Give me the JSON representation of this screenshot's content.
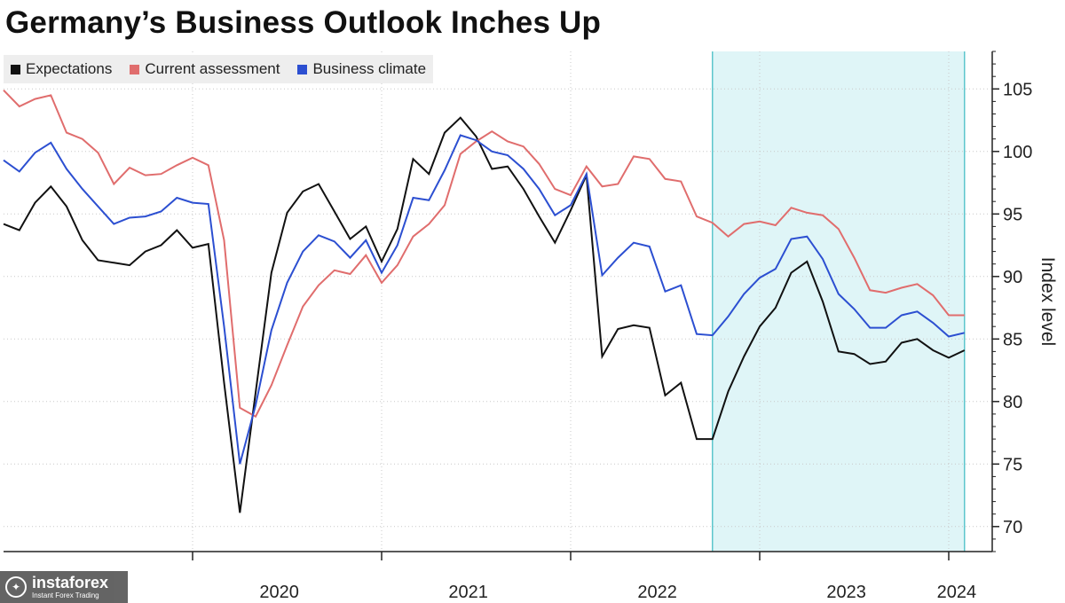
{
  "chart_data": {
    "type": "line",
    "title": "Germany’s Business Outlook Inches Up",
    "ylabel": "Index level",
    "ylim": [
      68,
      108
    ],
    "yticks": [
      70,
      75,
      80,
      85,
      90,
      95,
      100,
      105
    ],
    "xticks": [
      "2020",
      "2021",
      "2022",
      "2023",
      "2024"
    ],
    "x_start": "2019-01",
    "highlight": {
      "from": "2022-10",
      "to": "2024-02",
      "color": "#dff5f7"
    },
    "grid": true,
    "legend_position": "top-left",
    "series": [
      {
        "name": "Expectations",
        "color": "#111111",
        "values": [
          94.2,
          93.7,
          95.9,
          97.2,
          95.6,
          92.9,
          91.3,
          91.1,
          90.9,
          92.0,
          92.5,
          93.7,
          92.3,
          92.6,
          81.5,
          71.1,
          80.7,
          90.3,
          95.1,
          96.8,
          97.4,
          95.2,
          93.0,
          94.0,
          91.2,
          93.8,
          99.4,
          98.2,
          101.5,
          102.7,
          101.2,
          98.6,
          98.8,
          97.0,
          94.8,
          92.7,
          95.3,
          98.1,
          83.6,
          85.8,
          86.1,
          85.9,
          80.5,
          81.5,
          77.0,
          77.0,
          80.8,
          83.6,
          86.0,
          87.5,
          90.3,
          91.2,
          88.0,
          84.0,
          83.8,
          83.0,
          83.2,
          84.7,
          85.0,
          84.1,
          83.5,
          84.1
        ]
      },
      {
        "name": "Current assessment",
        "color": "#e06d6d",
        "values": [
          104.9,
          103.6,
          104.2,
          104.5,
          101.5,
          101.0,
          99.9,
          97.4,
          98.7,
          98.1,
          98.2,
          98.9,
          99.5,
          98.9,
          92.9,
          79.5,
          78.8,
          81.3,
          84.5,
          87.6,
          89.3,
          90.5,
          90.2,
          91.7,
          89.5,
          90.9,
          93.2,
          94.2,
          95.7,
          99.8,
          100.8,
          101.6,
          100.8,
          100.4,
          99.0,
          97.0,
          96.5,
          98.8,
          97.2,
          97.4,
          99.6,
          99.4,
          97.8,
          97.6,
          94.8,
          94.3,
          93.2,
          94.2,
          94.4,
          94.1,
          95.5,
          95.1,
          94.9,
          93.8,
          91.5,
          88.9,
          88.7,
          89.1,
          89.4,
          88.5,
          86.9,
          86.9
        ]
      },
      {
        "name": "Business climate",
        "color": "#2c4fd1",
        "values": [
          99.3,
          98.4,
          99.9,
          100.7,
          98.6,
          97.0,
          95.6,
          94.2,
          94.7,
          94.8,
          95.2,
          96.3,
          95.9,
          95.8,
          86.0,
          75.0,
          79.7,
          85.7,
          89.5,
          92.0,
          93.3,
          92.8,
          91.5,
          92.9,
          90.3,
          92.5,
          96.3,
          96.1,
          98.5,
          101.3,
          100.9,
          100.0,
          99.7,
          98.6,
          97.0,
          94.9,
          95.7,
          98.2,
          90.1,
          91.5,
          92.7,
          92.4,
          88.8,
          89.3,
          85.4,
          85.3,
          86.8,
          88.6,
          89.9,
          90.6,
          93.0,
          93.2,
          91.4,
          88.6,
          87.4,
          85.9,
          85.9,
          86.9,
          87.2,
          86.3,
          85.2,
          85.5
        ]
      }
    ]
  },
  "watermark": {
    "brand": "instaforex",
    "tagline": "Instant Forex Trading"
  }
}
